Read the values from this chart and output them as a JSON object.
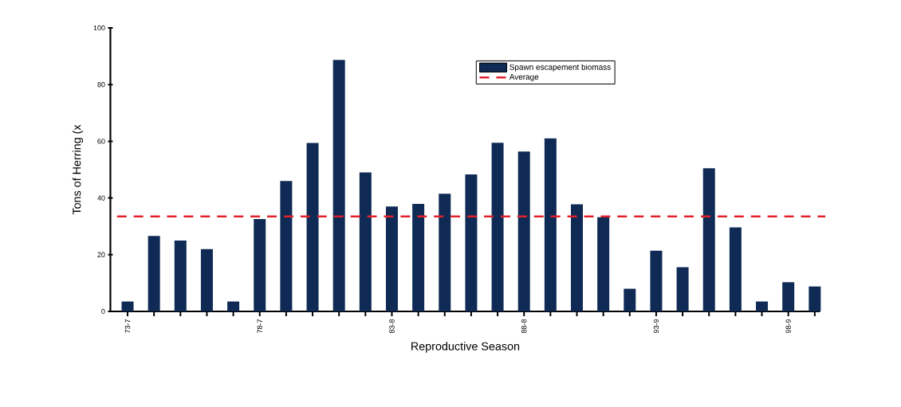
{
  "chart_data": {
    "type": "bar",
    "xlabel": "Reproductive Season",
    "ylabel": "Tons of Herring (x",
    "categories": [
      "73-7",
      null,
      null,
      null,
      null,
      "78-7",
      null,
      null,
      null,
      null,
      "83-8",
      null,
      null,
      null,
      null,
      "88-8",
      null,
      null,
      null,
      null,
      "93-9",
      null,
      null,
      null,
      null,
      "98-9",
      null
    ],
    "series": [
      {
        "name": "Spawn escapement biomass",
        "color": "#0f2b55",
        "values": [
          3.5,
          26.6,
          25,
          22,
          3.5,
          32.6,
          46,
          59.4,
          88.7,
          49,
          37,
          37.9,
          41.5,
          48.3,
          59.5,
          56.4,
          61,
          37.8,
          33.2,
          8,
          21.4,
          15.6,
          50.5,
          29.6,
          3.5,
          10.3,
          8.8
        ]
      }
    ],
    "ref_lines": [
      {
        "axis": "y",
        "value": 33.5,
        "label": "Average",
        "color": "#e0202a",
        "line_style": "dashed"
      }
    ],
    "ylim": [
      0,
      100
    ],
    "yticks": [
      0,
      20,
      40,
      60,
      80,
      100
    ],
    "grid": false,
    "legend": "top right"
  }
}
